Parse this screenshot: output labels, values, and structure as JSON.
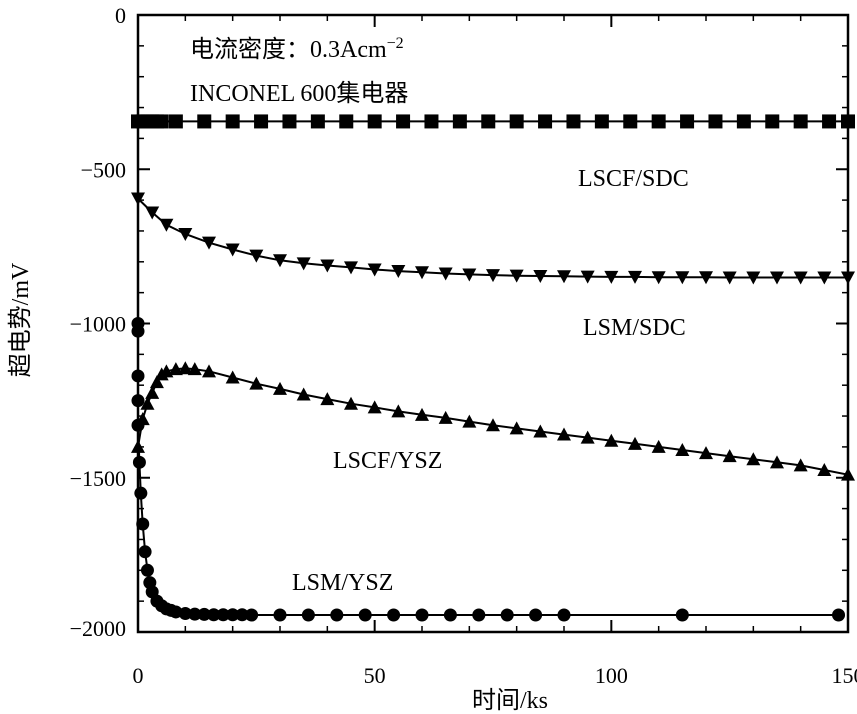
{
  "chart_data": {
    "type": "line",
    "title": "",
    "xlabel": "时间/ks",
    "ylabel": "超电势/mV",
    "xlim": [
      0,
      150
    ],
    "ylim": [
      -2000,
      0
    ],
    "x_ticks": [
      0,
      50,
      100,
      150
    ],
    "y_ticks": [
      0,
      -500,
      -1000,
      -1500,
      -2000
    ],
    "x_tick_labels": [
      "0",
      "50",
      "100",
      "150"
    ],
    "y_tick_labels": [
      "0",
      "−500",
      "−1000",
      "−1500",
      "−2000"
    ],
    "grid": false,
    "annotations": [
      {
        "text": "电流密度：0.3Acm",
        "superscript": "−2"
      },
      {
        "text": "INCONEL 600集电器"
      }
    ],
    "series": [
      {
        "name": "LSCF/SDC",
        "marker": "square",
        "x": [
          0,
          1,
          2,
          3,
          4,
          5,
          8,
          14,
          20,
          26,
          32,
          38,
          44,
          50,
          56,
          62,
          68,
          74,
          80,
          86,
          92,
          98,
          104,
          110,
          116,
          122,
          128,
          134,
          140,
          146,
          150
        ],
        "y": [
          -345,
          -345,
          -345,
          -345,
          -345,
          -345,
          -345,
          -345,
          -345,
          -345,
          -345,
          -345,
          -345,
          -345,
          -345,
          -345,
          -345,
          -345,
          -345,
          -345,
          -345,
          -345,
          -345,
          -345,
          -345,
          -345,
          -345,
          -345,
          -345,
          -345,
          -345
        ]
      },
      {
        "name": "LSM/SDC",
        "marker": "triangle-down",
        "x": [
          0,
          3,
          6,
          10,
          15,
          20,
          25,
          30,
          35,
          40,
          45,
          50,
          55,
          60,
          65,
          70,
          75,
          80,
          85,
          90,
          95,
          100,
          105,
          110,
          115,
          120,
          125,
          130,
          135,
          140,
          145,
          150
        ],
        "y": [
          -595,
          -640,
          -680,
          -710,
          -738,
          -760,
          -780,
          -795,
          -805,
          -812,
          -818,
          -825,
          -830,
          -834,
          -838,
          -841,
          -843,
          -845,
          -846,
          -847,
          -848,
          -849,
          -849,
          -850,
          -850,
          -850,
          -851,
          -851,
          -851,
          -851,
          -851,
          -851
        ]
      },
      {
        "name": "LSCF/YSZ",
        "marker": "triangle-up",
        "x": [
          0,
          1,
          2,
          3,
          4,
          5,
          6,
          8,
          10,
          12,
          15,
          20,
          25,
          30,
          35,
          40,
          45,
          50,
          55,
          60,
          65,
          70,
          75,
          80,
          85,
          90,
          95,
          100,
          105,
          110,
          115,
          120,
          125,
          130,
          135,
          140,
          145,
          150
        ],
        "y": [
          -1400,
          -1310,
          -1260,
          -1225,
          -1190,
          -1165,
          -1155,
          -1148,
          -1145,
          -1148,
          -1155,
          -1175,
          -1195,
          -1212,
          -1230,
          -1245,
          -1260,
          -1272,
          -1285,
          -1296,
          -1306,
          -1318,
          -1330,
          -1340,
          -1350,
          -1360,
          -1370,
          -1380,
          -1390,
          -1400,
          -1410,
          -1420,
          -1430,
          -1440,
          -1450,
          -1460,
          -1475,
          -1490
        ]
      },
      {
        "name": "LSM/YSZ",
        "marker": "circle",
        "x": [
          0,
          0,
          0,
          0,
          0,
          0.3,
          0.6,
          1,
          1.5,
          2,
          2.5,
          3,
          4,
          5,
          6,
          7,
          8,
          10,
          12,
          14,
          16,
          18,
          20,
          22,
          24,
          30,
          36,
          42,
          48,
          54,
          60,
          66,
          72,
          78,
          84,
          90,
          115,
          148
        ],
        "y": [
          -1000,
          -1025,
          -1170,
          -1250,
          -1330,
          -1450,
          -1550,
          -1650,
          -1740,
          -1800,
          -1840,
          -1870,
          -1900,
          -1915,
          -1925,
          -1930,
          -1935,
          -1940,
          -1942,
          -1943,
          -1944,
          -1944,
          -1944,
          -1944,
          -1945,
          -1945,
          -1945,
          -1945,
          -1945,
          -1945,
          -1945,
          -1945,
          -1945,
          -1945,
          -1945,
          -1945,
          -1945,
          -1945
        ]
      }
    ]
  }
}
